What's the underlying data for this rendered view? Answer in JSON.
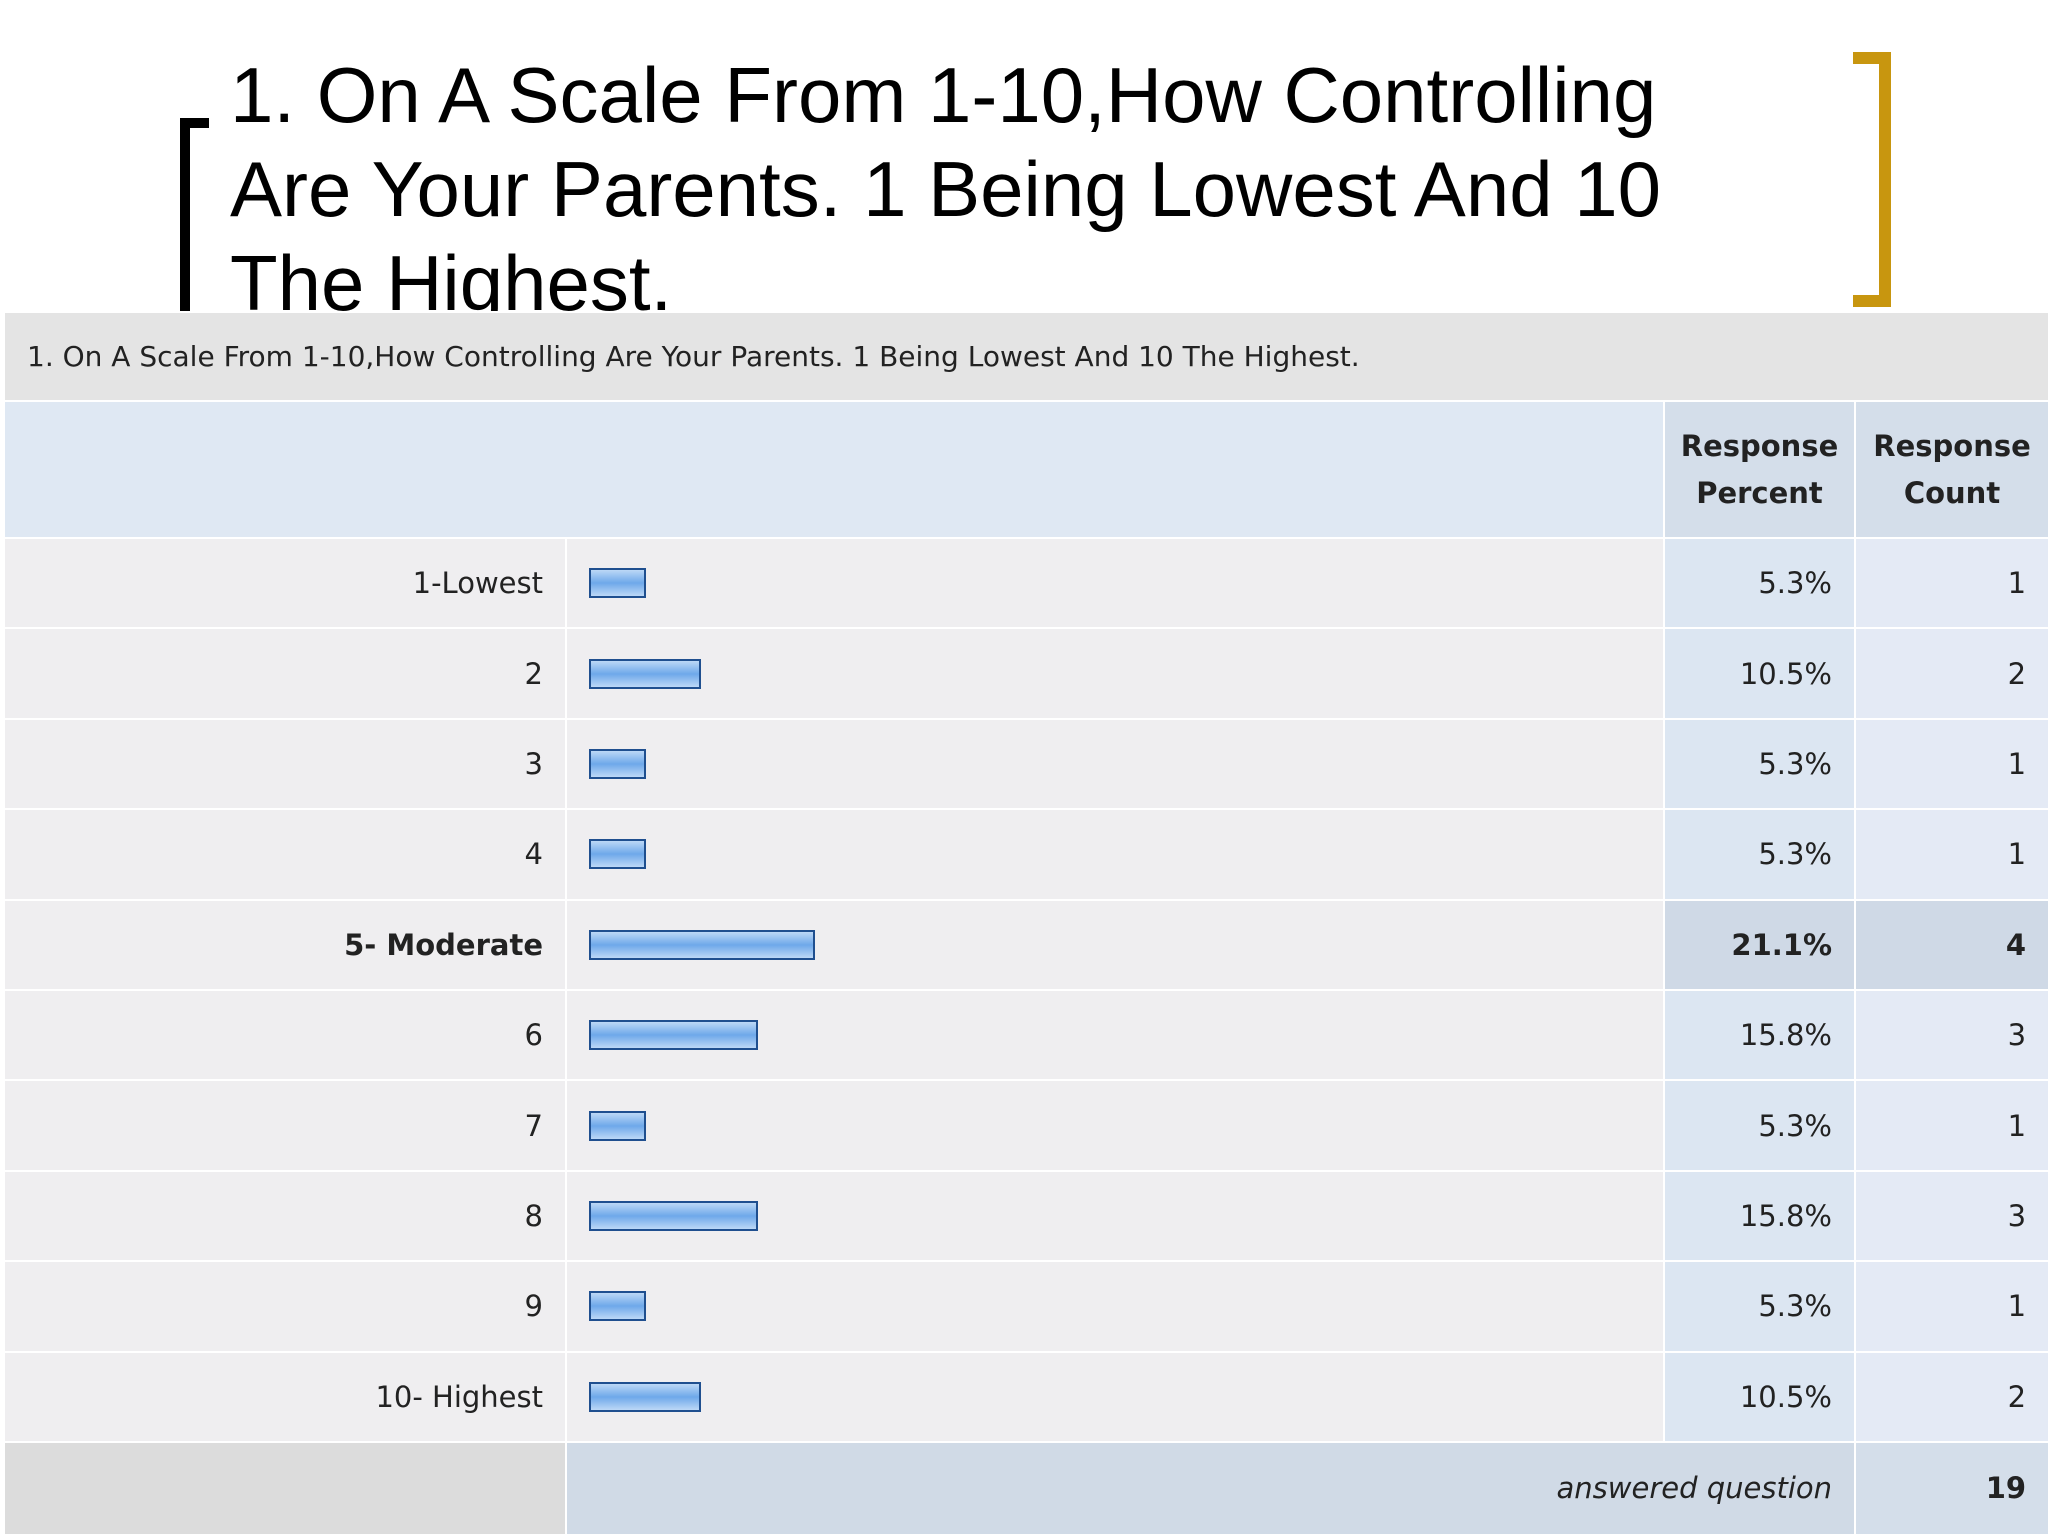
{
  "slide": {
    "title": "1. On A Scale From 1-10,How Controlling Are Your Parents. 1 Being Lowest And 10 The Highest."
  },
  "table": {
    "question": "1. On A Scale From 1-10,How Controlling Are Your Parents. 1 Being Lowest And 10 The Highest.",
    "columns": [
      "Response Percent",
      "Response Count"
    ],
    "rows": [
      {
        "option": "1-Lowest",
        "percent": 5.3,
        "percent_label": "5.3%",
        "count": 1
      },
      {
        "option": "2",
        "percent": 10.5,
        "percent_label": "10.5%",
        "count": 2
      },
      {
        "option": "3",
        "percent": 5.3,
        "percent_label": "5.3%",
        "count": 1
      },
      {
        "option": "4",
        "percent": 5.3,
        "percent_label": "5.3%",
        "count": 1
      },
      {
        "option": "5- Moderate",
        "percent": 21.1,
        "percent_label": "21.1%",
        "count": 4,
        "bold": true
      },
      {
        "option": "6",
        "percent": 15.8,
        "percent_label": "15.8%",
        "count": 3
      },
      {
        "option": "7",
        "percent": 5.3,
        "percent_label": "5.3%",
        "count": 1
      },
      {
        "option": "8",
        "percent": 15.8,
        "percent_label": "15.8%",
        "count": 3
      },
      {
        "option": "9",
        "percent": 5.3,
        "percent_label": "5.3%",
        "count": 1
      },
      {
        "option": "10- Highest",
        "percent": 10.5,
        "percent_label": "10.5%",
        "count": 2
      }
    ],
    "footer": {
      "label": "answered question",
      "count": 19
    }
  }
}
